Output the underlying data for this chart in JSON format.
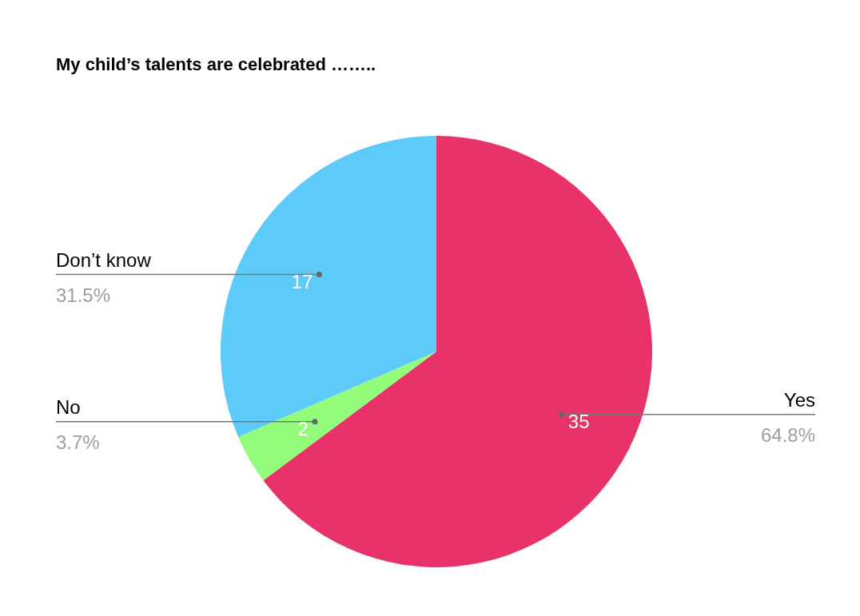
{
  "chart_data": {
    "type": "pie",
    "title": "My child’s talents are celebrated ……..",
    "categories": [
      "Yes",
      "No",
      "Don’t know"
    ],
    "values": [
      35,
      2,
      17
    ],
    "colors": [
      "#e8336a",
      "#93fd7b",
      "#5dcbf9"
    ],
    "data_labels": true,
    "annotations": [
      "64.8%",
      "3.7%",
      "31.5%"
    ]
  }
}
